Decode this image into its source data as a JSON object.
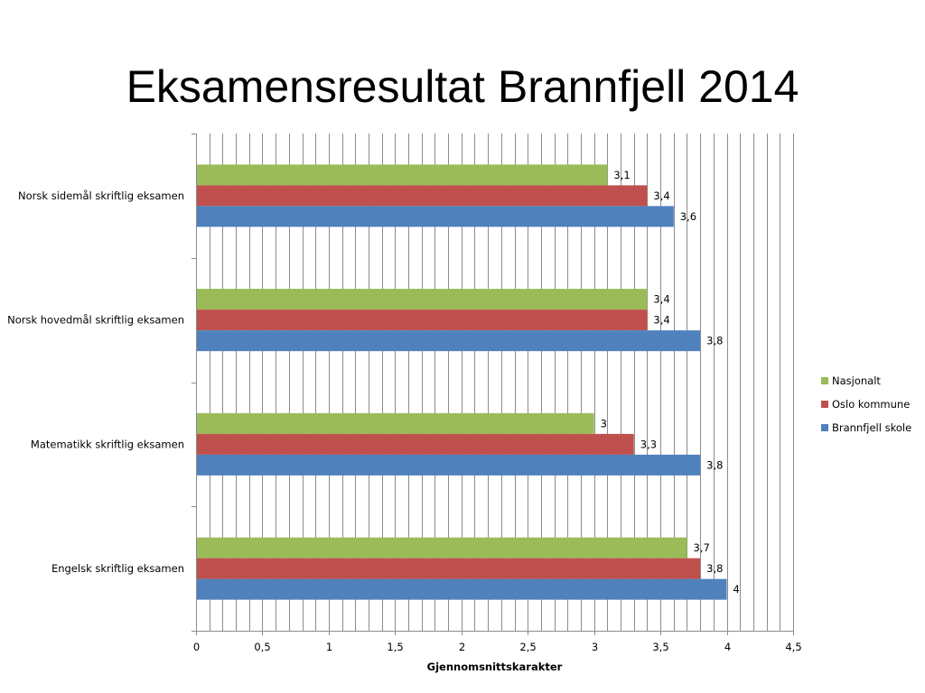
{
  "slide": {
    "title": "Eksamensresultat Brannfjell 2014"
  },
  "chart_data": {
    "type": "bar",
    "orientation": "horizontal",
    "categories": [
      "Norsk sidemål skriftlig eksamen",
      "Norsk hovedmål skriftlig eksamen",
      "Matematikk skriftlig eksamen",
      "Engelsk skriftlig eksamen"
    ],
    "series": [
      {
        "name": "Nasjonalt",
        "color": "#9BBB59",
        "values": [
          3.1,
          3.4,
          3,
          3.7
        ],
        "labels": [
          "3,1",
          "3,4",
          "3",
          "3,7"
        ]
      },
      {
        "name": "Oslo kommune",
        "color": "#C0504D",
        "values": [
          3.4,
          3.4,
          3.3,
          3.8
        ],
        "labels": [
          "3,4",
          "3,4",
          "3,3",
          "3,8"
        ]
      },
      {
        "name": "Brannfjell skole",
        "color": "#4F81BD",
        "values": [
          3.6,
          3.8,
          3.8,
          4
        ],
        "labels": [
          "3,6",
          "3,8",
          "3,8",
          "4"
        ]
      }
    ],
    "xlabel": "Gjennomsnittskarakter",
    "ylabel": "",
    "xlim": [
      0,
      4.5
    ],
    "ticks": [
      0,
      0.5,
      1,
      1.5,
      2,
      2.5,
      3,
      3.5,
      4,
      4.5
    ],
    "tick_labels": [
      "0",
      "0,5",
      "1",
      "1,5",
      "2",
      "2,5",
      "3",
      "3,5",
      "4",
      "4,5"
    ],
    "minor_grid_step": 0.1,
    "grid": true,
    "legend_position": "right"
  }
}
